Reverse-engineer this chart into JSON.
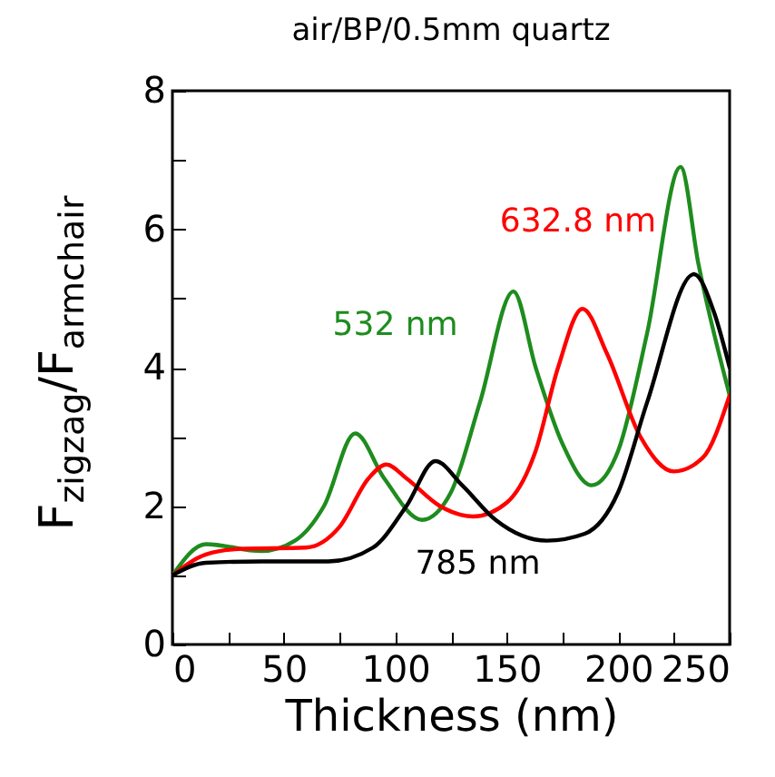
{
  "chart_data": {
    "type": "line",
    "title": "air/BP/0.5mm quartz",
    "xlabel": "Thickness (nm)",
    "ylabel": "F$_{zigzag}$/F$_{armchair}$",
    "xlim": [
      0,
      250
    ],
    "ylim": [
      0,
      8
    ],
    "xticks": [
      0,
      {
        "value": 25,
        "label": null
      },
      50,
      {
        "value": 75,
        "label": null
      },
      100,
      {
        "value": 125,
        "label": null
      },
      150,
      {
        "value": 175,
        "label": null
      },
      200,
      {
        "value": 225,
        "label": null
      },
      250
    ],
    "yticks": [
      0,
      {
        "value": 1,
        "label": null
      },
      2,
      {
        "value": 3,
        "label": null
      },
      4,
      {
        "value": 5,
        "label": null
      },
      6,
      {
        "value": 7,
        "label": null
      },
      8
    ],
    "grid": false,
    "legend": false,
    "marker": "none",
    "line_style": "solid",
    "series": [
      {
        "name": "532 nm",
        "color": "#1e8c1e",
        "x": [
          0,
          15,
          40,
          55,
          68,
          82,
          95,
          112,
          125,
          138,
          153,
          163,
          175,
          188,
          200,
          213,
          228,
          236,
          250
        ],
        "values": [
          1.0,
          1.45,
          1.35,
          1.5,
          2.0,
          3.05,
          2.4,
          1.8,
          2.2,
          3.5,
          5.1,
          4.0,
          2.9,
          2.3,
          2.8,
          4.5,
          6.9,
          5.5,
          3.6
        ]
      },
      {
        "name": "632.8 nm",
        "color": "#ff0000",
        "x": [
          0,
          15,
          30,
          60,
          75,
          88,
          96,
          105,
          120,
          135,
          150,
          163,
          173,
          184,
          195,
          210,
          225,
          238,
          250
        ],
        "values": [
          1.0,
          1.3,
          1.38,
          1.4,
          1.7,
          2.4,
          2.6,
          2.4,
          2.0,
          1.85,
          2.05,
          2.8,
          4.0,
          4.85,
          4.2,
          3.0,
          2.5,
          2.7,
          3.6
        ]
      },
      {
        "name": "785 nm",
        "color": "#000000",
        "x": [
          0,
          15,
          40,
          70,
          90,
          105,
          118,
          130,
          145,
          168,
          185,
          200,
          213,
          234,
          243,
          250
        ],
        "values": [
          1.0,
          1.18,
          1.2,
          1.2,
          1.4,
          2.0,
          2.65,
          2.3,
          1.8,
          1.5,
          1.6,
          2.2,
          3.5,
          5.35,
          4.8,
          4.0
        ]
      }
    ]
  }
}
